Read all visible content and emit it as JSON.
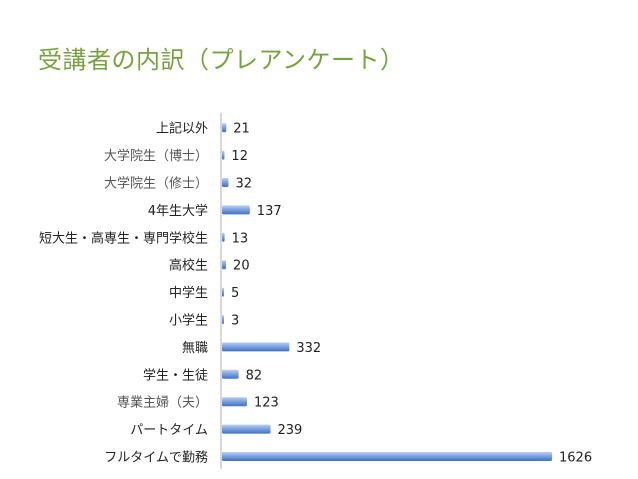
{
  "slide": {
    "title": "受講者の内訳（プレアンケート）"
  },
  "colors": {
    "title": "#77a33f",
    "bar_light": "#a9c4ee",
    "bar_dark": "#3f6fc4"
  },
  "chart_data": {
    "type": "bar",
    "orientation": "horizontal",
    "categories": [
      "上記以外",
      "大学院生（博士）",
      "大学院生（修士）",
      "4年生大学",
      "短大生・高専生・専門学校生",
      "高校生",
      "中学生",
      "小学生",
      "無職",
      "学生・生徒",
      "専業主婦（夫）",
      "パートタイム",
      "フルタイムで勤務"
    ],
    "values": [
      21,
      12,
      32,
      137,
      13,
      20,
      5,
      3,
      332,
      82,
      123,
      239,
      1626
    ],
    "xlim": [
      0,
      1626
    ],
    "grid": false,
    "legend": "none"
  }
}
